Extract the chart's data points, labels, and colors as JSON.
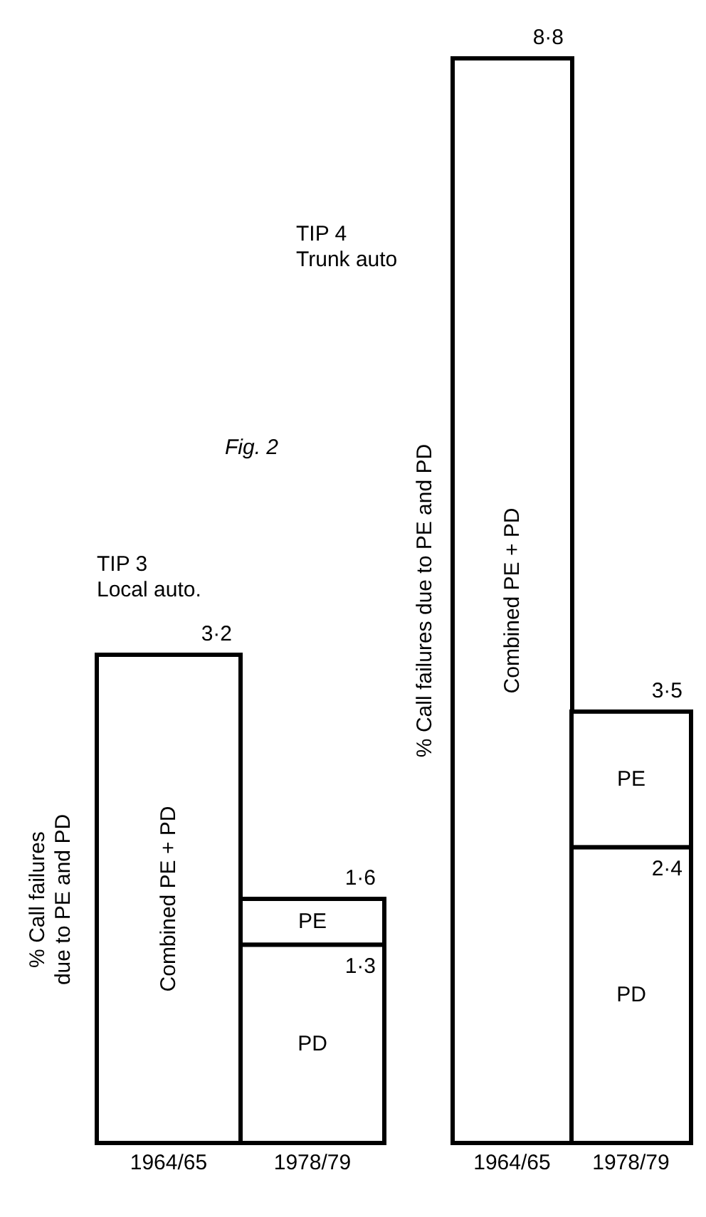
{
  "chart_data": [
    {
      "type": "bar",
      "title": "TIP 3\nLocal auto.",
      "ylabel": "% Call failures\ndue to PE and PD",
      "annotations": [
        "Fig. 2"
      ],
      "categories": [
        "1964/65",
        "1978/79"
      ],
      "stacked": true,
      "series": [
        {
          "name": "Combined PE + PD",
          "color": "#ffffff",
          "values": [
            3.2,
            null
          ]
        },
        {
          "name": "PD",
          "color": "#ffffff",
          "values": [
            null,
            1.3
          ],
          "value_labels": [
            null,
            "1·3"
          ]
        },
        {
          "name": "PE",
          "color": "#ffffff",
          "values": [
            null,
            0.3
          ]
        }
      ],
      "totals": [
        "3·2",
        "1·6"
      ],
      "legend": false,
      "grid": false
    },
    {
      "type": "bar",
      "title": "TIP 4\nTrunk auto",
      "ylabel": "% Call failures due to PE and PD",
      "categories": [
        "1964/65",
        "1978/79"
      ],
      "stacked": true,
      "series": [
        {
          "name": "Combined PE + PD",
          "color": "#ffffff",
          "values": [
            8.8,
            null
          ]
        },
        {
          "name": "PD",
          "color": "#ffffff",
          "values": [
            null,
            2.4
          ],
          "value_labels": [
            null,
            "2·4"
          ]
        },
        {
          "name": "PE",
          "color": "#ffffff",
          "values": [
            null,
            1.1
          ]
        }
      ],
      "totals": [
        "8·8",
        "3·5"
      ],
      "legend": false,
      "grid": false
    }
  ]
}
